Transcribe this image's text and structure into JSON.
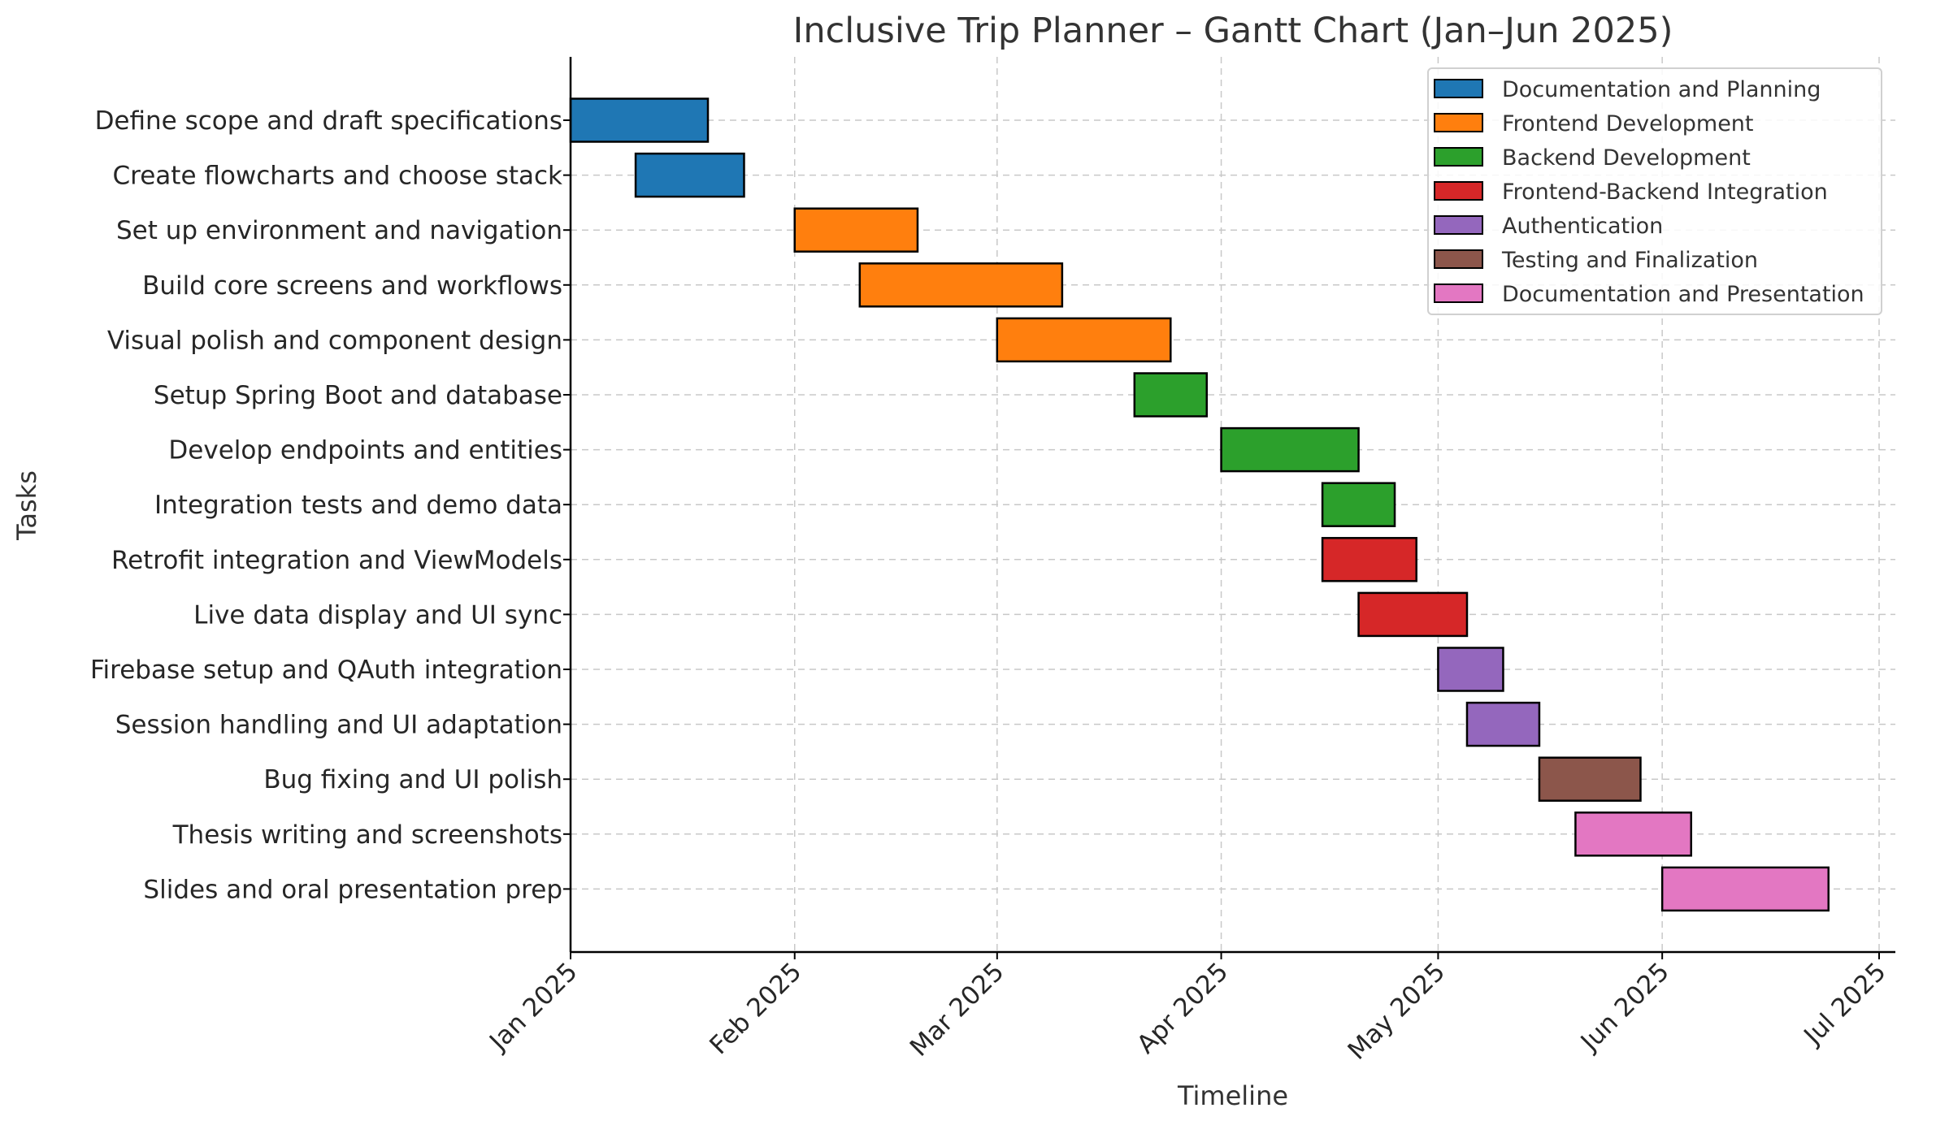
{
  "chart_data": {
    "type": "gantt",
    "title": "Inclusive Trip Planner – Gantt Chart (Jan–Jun 2025)",
    "xlabel": "Timeline",
    "ylabel": "Tasks",
    "x_range": [
      "2025-01-01",
      "2025-07-01"
    ],
    "x_ticks": [
      {
        "date": "2025-01-01",
        "label": "Jan 2025"
      },
      {
        "date": "2025-02-01",
        "label": "Feb 2025"
      },
      {
        "date": "2025-03-01",
        "label": "Mar 2025"
      },
      {
        "date": "2025-04-01",
        "label": "Apr 2025"
      },
      {
        "date": "2025-05-01",
        "label": "May 2025"
      },
      {
        "date": "2025-06-01",
        "label": "Jun 2025"
      },
      {
        "date": "2025-07-01",
        "label": "Jul 2025"
      }
    ],
    "grid": true,
    "legend_position": "top-right",
    "phases": [
      {
        "name": "Documentation and Planning",
        "color": "#1f77b4"
      },
      {
        "name": "Frontend Development",
        "color": "#ff7f0e"
      },
      {
        "name": "Backend Development",
        "color": "#2ca02c"
      },
      {
        "name": "Frontend-Backend Integration",
        "color": "#d62728"
      },
      {
        "name": "Authentication",
        "color": "#9467bd"
      },
      {
        "name": "Testing and Finalization",
        "color": "#8c564b"
      },
      {
        "name": "Documentation and Presentation",
        "color": "#e377c2"
      }
    ],
    "tasks": [
      {
        "name": "Define scope and draft specifications",
        "phase": 0,
        "start": "2025-01-01",
        "end": "2025-01-20"
      },
      {
        "name": "Create flowcharts and choose stack",
        "phase": 0,
        "start": "2025-01-10",
        "end": "2025-01-25"
      },
      {
        "name": "Set up environment and navigation",
        "phase": 1,
        "start": "2025-02-01",
        "end": "2025-02-18"
      },
      {
        "name": "Build core screens and workflows",
        "phase": 1,
        "start": "2025-02-10",
        "end": "2025-03-10"
      },
      {
        "name": "Visual polish and component design",
        "phase": 1,
        "start": "2025-03-01",
        "end": "2025-03-25"
      },
      {
        "name": "Setup Spring Boot and database",
        "phase": 2,
        "start": "2025-03-20",
        "end": "2025-03-30"
      },
      {
        "name": "Develop endpoints and entities",
        "phase": 2,
        "start": "2025-04-01",
        "end": "2025-04-20"
      },
      {
        "name": "Integration tests and demo data",
        "phase": 2,
        "start": "2025-04-15",
        "end": "2025-04-25"
      },
      {
        "name": "Retrofit integration and ViewModels",
        "phase": 3,
        "start": "2025-04-15",
        "end": "2025-04-28"
      },
      {
        "name": "Live data display and UI sync",
        "phase": 3,
        "start": "2025-04-20",
        "end": "2025-05-05"
      },
      {
        "name": "Firebase setup and QAuth integration",
        "phase": 4,
        "start": "2025-05-01",
        "end": "2025-05-10"
      },
      {
        "name": "Session handling and UI adaptation",
        "phase": 4,
        "start": "2025-05-05",
        "end": "2025-05-15"
      },
      {
        "name": "Bug fixing and UI polish",
        "phase": 5,
        "start": "2025-05-15",
        "end": "2025-05-29"
      },
      {
        "name": "Thesis writing and screenshots",
        "phase": 6,
        "start": "2025-05-20",
        "end": "2025-06-05"
      },
      {
        "name": "Slides and oral presentation prep",
        "phase": 6,
        "start": "2025-06-01",
        "end": "2025-06-24"
      }
    ]
  }
}
